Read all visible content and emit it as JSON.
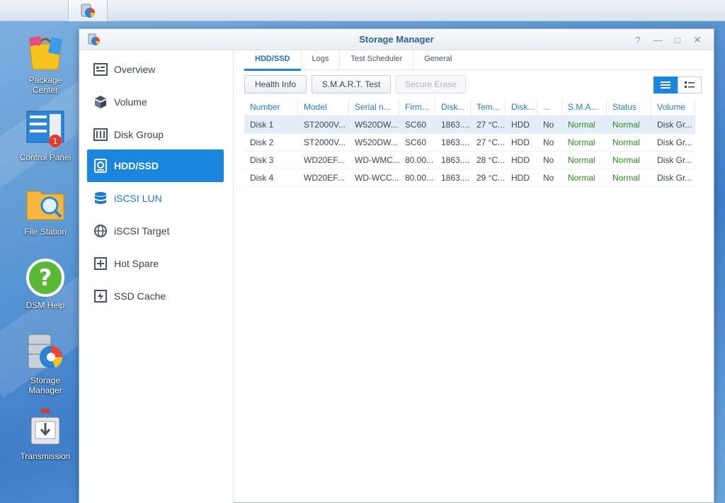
{
  "taskbar": {
    "main_menu_icon": "grid-icon",
    "open_app_icon": "storage-manager-icon"
  },
  "desktop": {
    "icons": [
      {
        "label": "Package\nCenter",
        "icon": "package-center-icon"
      },
      {
        "label": "Control Panel",
        "icon": "control-panel-icon",
        "badge": "1"
      },
      {
        "label": "File Station",
        "icon": "file-station-icon"
      },
      {
        "label": "DSM Help",
        "icon": "help-icon"
      },
      {
        "label": "Storage\nManager",
        "icon": "storage-manager-icon"
      },
      {
        "label": "Transmission",
        "icon": "transmission-icon"
      }
    ]
  },
  "window": {
    "title": "Storage Manager",
    "controls": {
      "help": "?",
      "minimize": "—",
      "maximize": "□",
      "close": "✕"
    }
  },
  "sidebar": {
    "items": [
      {
        "label": "Overview",
        "icon": "overview-icon"
      },
      {
        "label": "Volume",
        "icon": "volume-icon"
      },
      {
        "label": "Disk Group",
        "icon": "disk-group-icon"
      },
      {
        "label": "HDD/SSD",
        "icon": "hdd-icon",
        "active": true
      },
      {
        "label": "iSCSI LUN",
        "icon": "database-icon"
      },
      {
        "label": "iSCSI Target",
        "icon": "globe-icon"
      },
      {
        "label": "Hot Spare",
        "icon": "hot-spare-icon"
      },
      {
        "label": "SSD Cache",
        "icon": "ssd-cache-icon"
      }
    ]
  },
  "tabs": [
    {
      "label": "HDD/SSD",
      "active": true
    },
    {
      "label": "Logs"
    },
    {
      "label": "Test Scheduler"
    },
    {
      "label": "General"
    }
  ],
  "toolbar": {
    "health_info": "Health Info",
    "smart_test": "S.M.A.R.T. Test",
    "secure_erase": "Secure Erase"
  },
  "table": {
    "columns": [
      "Number",
      "Model",
      "Serial n...",
      "Firm...",
      "Disk...",
      "Tem...",
      "Disk...",
      "...",
      "S.M.A...",
      "Status",
      "Volume"
    ],
    "rows": [
      [
        "Disk 1",
        "ST2000V...",
        "W520DW...",
        "SC60",
        "1863....",
        "27 °C...",
        "HDD",
        "No",
        "Normal",
        "Normal",
        "Disk Gr..."
      ],
      [
        "Disk 2",
        "ST2000V...",
        "W520DW...",
        "SC60",
        "1863....",
        "27 °C...",
        "HDD",
        "No",
        "Normal",
        "Normal",
        "Disk Gr..."
      ],
      [
        "Disk 3",
        "WD20EF...",
        "WD-WMC...",
        "80.00...",
        "1863....",
        "28 °C...",
        "HDD",
        "No",
        "Normal",
        "Normal",
        "Disk Gr..."
      ],
      [
        "Disk 4",
        "WD20EF...",
        "WD-WCC...",
        "80.00...",
        "1863....",
        "29 °C...",
        "HDD",
        "No",
        "Normal",
        "Normal",
        "Disk Gr..."
      ]
    ]
  },
  "colors": {
    "accent": "#1a86e0",
    "status_normal": "#2e8b20",
    "header_text": "#2b78c6"
  }
}
